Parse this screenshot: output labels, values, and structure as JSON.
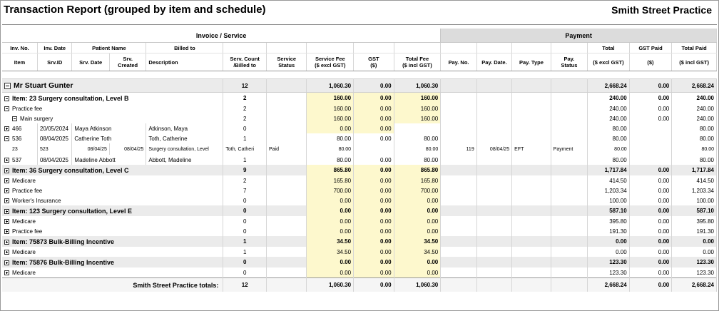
{
  "report": {
    "title": "Transaction Report (grouped by item and schedule)",
    "practice": "Smith Street Practice"
  },
  "bands": {
    "invoice": "Invoice / Service",
    "payment": "Payment"
  },
  "header1": [
    "Inv. No.",
    "Inv. Date",
    "Patient Name",
    "Billed to",
    "Total",
    "GST Paid",
    "Total Paid"
  ],
  "header2": {
    "item": "Item",
    "srv_id": "Srv.ID",
    "srv_date": "Srv. Date",
    "srv_created_1": "Srv.",
    "srv_created_2": "Created",
    "description": "Description",
    "serv_count_1": "Serv. Count",
    "serv_count_2": "/Billed to",
    "service_status_1": "Service",
    "service_status_2": "Status",
    "service_fee_1": "Service Fee",
    "service_fee_2": "($ excl GST)",
    "gst_1": "GST",
    "gst_2": "($)",
    "total_fee_1": "Total Fee",
    "total_fee_2": "($ incl GST)",
    "pay_no": "Pay. No.",
    "pay_date": "Pay. Date.",
    "pay_type": "Pay. Type",
    "pay_status_1": "Pay.",
    "pay_status_2": "Status",
    "total_1": "($ excl GST)",
    "gst_paid_1": "($)",
    "total_paid_1": "($ incl GST)"
  },
  "patient": {
    "name": "Mr Stuart Gunter",
    "count": "12",
    "fee": "1,060.30",
    "gst": "0.00",
    "total": "1,060.30",
    "pay_total": "2,668.24",
    "gst_paid": "0.00",
    "total_paid": "2,668.24"
  },
  "items": [
    {
      "name": "Item: 23 Surgery consultation, Level B",
      "count": "2",
      "fee": "160.00",
      "gst": "0.00",
      "total": "160.00",
      "pay_total": "240.00",
      "gst_paid": "0.00",
      "total_paid": "240.00"
    },
    {
      "name": "Item: 36 Surgery consultation, Level C",
      "count": "9",
      "fee": "865.80",
      "gst": "0.00",
      "total": "865.80",
      "pay_total": "1,717.84",
      "gst_paid": "0.00",
      "total_paid": "1,717.84"
    },
    {
      "name": "Item: 123 Surgery consultation, Level E",
      "count": "0",
      "fee": "0.00",
      "gst": "0.00",
      "total": "0.00",
      "pay_total": "587.10",
      "gst_paid": "0.00",
      "total_paid": "587.10"
    },
    {
      "name": "Item: 75873 Bulk-Billing Incentive",
      "count": "1",
      "fee": "34.50",
      "gst": "0.00",
      "total": "34.50",
      "pay_total": "0.00",
      "gst_paid": "0.00",
      "total_paid": "0.00"
    },
    {
      "name": "Item: 75876 Bulk-Billing Incentive",
      "count": "0",
      "fee": "0.00",
      "gst": "0.00",
      "total": "0.00",
      "pay_total": "123.30",
      "gst_paid": "0.00",
      "total_paid": "123.30"
    }
  ],
  "schedules": [
    {
      "name": "Practice fee",
      "count": "2",
      "fee": "160.00",
      "gst": "0.00",
      "total": "160.00",
      "pay_total": "240.00",
      "gst_paid": "0.00",
      "total_paid": "240.00"
    },
    {
      "name": "Medicare",
      "count": "2",
      "fee": "165.80",
      "gst": "0.00",
      "total": "165.80",
      "pay_total": "414.50",
      "gst_paid": "0.00",
      "total_paid": "414.50"
    },
    {
      "name": "Practice fee",
      "count": "7",
      "fee": "700.00",
      "gst": "0.00",
      "total": "700.00",
      "pay_total": "1,203.34",
      "gst_paid": "0.00",
      "total_paid": "1,203.34"
    },
    {
      "name": "Worker's Insurance",
      "count": "0",
      "fee": "0.00",
      "gst": "0.00",
      "total": "0.00",
      "pay_total": "100.00",
      "gst_paid": "0.00",
      "total_paid": "100.00"
    },
    {
      "name": "Medicare",
      "count": "0",
      "fee": "0.00",
      "gst": "0.00",
      "total": "0.00",
      "pay_total": "395.80",
      "gst_paid": "0.00",
      "total_paid": "395.80"
    },
    {
      "name": "Practice fee",
      "count": "0",
      "fee": "0.00",
      "gst": "0.00",
      "total": "0.00",
      "pay_total": "191.30",
      "gst_paid": "0.00",
      "total_paid": "191.30"
    },
    {
      "name": "Medicare",
      "count": "1",
      "fee": "34.50",
      "gst": "0.00",
      "total": "34.50",
      "pay_total": "0.00",
      "gst_paid": "0.00",
      "total_paid": "0.00"
    },
    {
      "name": "Medicare",
      "count": "0",
      "fee": "0.00",
      "gst": "0.00",
      "total": "0.00",
      "pay_total": "123.30",
      "gst_paid": "0.00",
      "total_paid": "123.30"
    }
  ],
  "location": {
    "name": "Main surgery",
    "count": "2",
    "fee": "160.00",
    "gst": "0.00",
    "total": "160.00",
    "pay_total": "240.00",
    "gst_paid": "0.00",
    "total_paid": "240.00"
  },
  "invoices": [
    {
      "inv_no": "466",
      "inv_date": "20/05/2024",
      "patient": "Maya Atkinson",
      "billed": "Atkinson, Maya",
      "count": "0",
      "fee": "0.00",
      "gst": "0.00",
      "total": "",
      "pay_total": "80.00",
      "gst_paid": "",
      "total_paid": "80.00"
    },
    {
      "inv_no": "536",
      "inv_date": "08/04/2025",
      "patient": "Catherine Toth",
      "billed": "Toth, Catherine",
      "count": "1",
      "fee": "80.00",
      "gst": "0.00",
      "total": "80.00",
      "pay_total": "80.00",
      "gst_paid": "",
      "total_paid": "80.00"
    },
    {
      "inv_no": "537",
      "inv_date": "08/04/2025",
      "patient": "Madeline Abbott",
      "billed": "Abbott, Madeline",
      "count": "1",
      "fee": "80.00",
      "gst": "0.00",
      "total": "80.00",
      "pay_total": "80.00",
      "gst_paid": "",
      "total_paid": "80.00"
    }
  ],
  "service": {
    "item": "23",
    "srv_id": "523",
    "srv_date": "08/04/25",
    "srv_created": "08/04/25",
    "description": "Surgery consultation, Level",
    "billed": "Toth, Catheri",
    "status": "Paid",
    "fee": "80.00",
    "gst": "",
    "total": "80.00",
    "pay_no": "119",
    "pay_date": "08/04/25",
    "pay_type": "EFT",
    "pay_status": "Payment",
    "pay_total": "80.00",
    "gst_paid": "",
    "total_paid": "80.00"
  },
  "totals": {
    "label": "Smith Street Practice totals:",
    "count": "12",
    "fee": "1,060.30",
    "gst": "0.00",
    "total": "1,060.30",
    "pay_total": "2,668.24",
    "gst_paid": "0.00",
    "total_paid": "2,668.24"
  }
}
